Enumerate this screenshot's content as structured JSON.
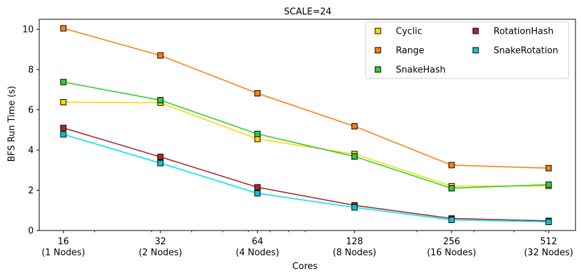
{
  "chart_data": {
    "type": "line",
    "title": "SCALE=24",
    "xlabel": "Cores",
    "ylabel": "BFS Run Time (s)",
    "x_scale": "log2",
    "x": [
      16,
      32,
      64,
      128,
      256,
      512
    ],
    "x_tick_labels": [
      [
        "16",
        "(1 Nodes)"
      ],
      [
        "32",
        "(2 Nodes)"
      ],
      [
        "64",
        "(4 Nodes)"
      ],
      [
        "128",
        "(8 Nodes)"
      ],
      [
        "256",
        "(16 Nodes)"
      ],
      [
        "512",
        "(32 Nodes)"
      ]
    ],
    "ylim": [
      0,
      10.5
    ],
    "y_ticks": [
      0,
      2,
      4,
      6,
      8,
      10
    ],
    "grid": false,
    "legend": {
      "placement": "top-right",
      "columns": 2
    },
    "marker": "square",
    "series": [
      {
        "name": "Cyclic",
        "color": "#FFD700",
        "marker_fill": "#FFD700",
        "values": [
          6.38,
          6.35,
          4.55,
          3.8,
          2.2,
          2.22
        ]
      },
      {
        "name": "Range",
        "color": "#FF7F0E",
        "marker_fill": "#FF7F0E",
        "values": [
          10.05,
          8.7,
          6.82,
          5.18,
          3.25,
          3.1
        ]
      },
      {
        "name": "SnakeHash",
        "color": "#32CD32",
        "marker_fill": "#32CD32",
        "values": [
          7.38,
          6.48,
          4.8,
          3.68,
          2.1,
          2.28
        ]
      },
      {
        "name": "RotationHash",
        "color": "#A52A2A",
        "marker_fill": "#A52A2A",
        "values": [
          5.1,
          3.66,
          2.15,
          1.25,
          0.6,
          0.48
        ]
      },
      {
        "name": "SnakeRotation",
        "color": "#00E5EE",
        "marker_fill": "#17BECF",
        "values": [
          4.78,
          3.35,
          1.85,
          1.15,
          0.53,
          0.43
        ]
      }
    ]
  }
}
